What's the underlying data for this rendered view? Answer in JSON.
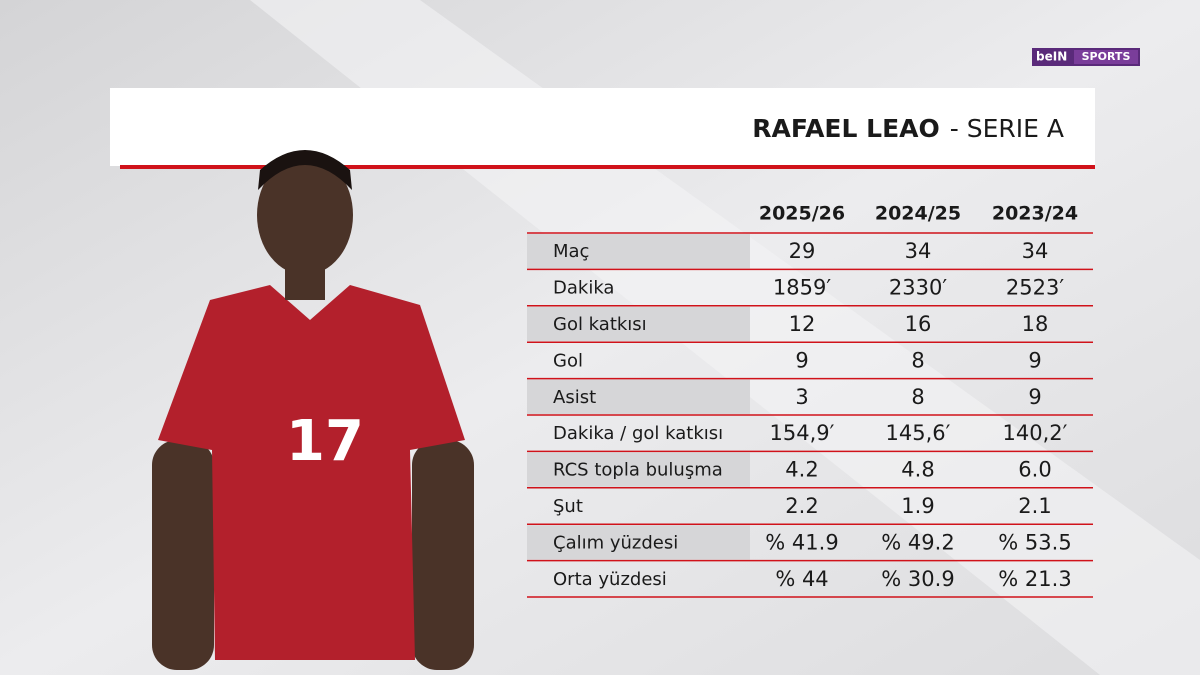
{
  "logo": {
    "brand": "beIN",
    "product": "SPORTS"
  },
  "header": {
    "title": "RAFAEL LEAO",
    "subtitle": "- SERIE A"
  },
  "player": {
    "jersey_number": "17"
  },
  "table": {
    "columns": [
      "2025/26",
      "2024/25",
      "2023/24"
    ],
    "rows": [
      [
        "Maç",
        "29",
        "34",
        "34"
      ],
      [
        "Dakika",
        "1859′",
        "2330′",
        "2523′"
      ],
      [
        "Gol katkısı",
        "12",
        "16",
        "18"
      ],
      [
        "Gol",
        "9",
        "8",
        "9"
      ],
      [
        "Asist",
        "3",
        "8",
        "9"
      ],
      [
        "Dakika / gol katkısı",
        "154,9′",
        "145,6′",
        "140,2′"
      ],
      [
        "RCS topla buluşma",
        "4.2",
        "4.8",
        "6.0"
      ],
      [
        "Şut",
        "2.2",
        "1.9",
        "2.1"
      ],
      [
        "Çalım yüzdesi",
        "% 41.9",
        "% 49.2",
        "% 53.5"
      ],
      [
        "Orta yüzdesi",
        "% 44",
        "% 30.9",
        "% 21.3"
      ]
    ]
  }
}
